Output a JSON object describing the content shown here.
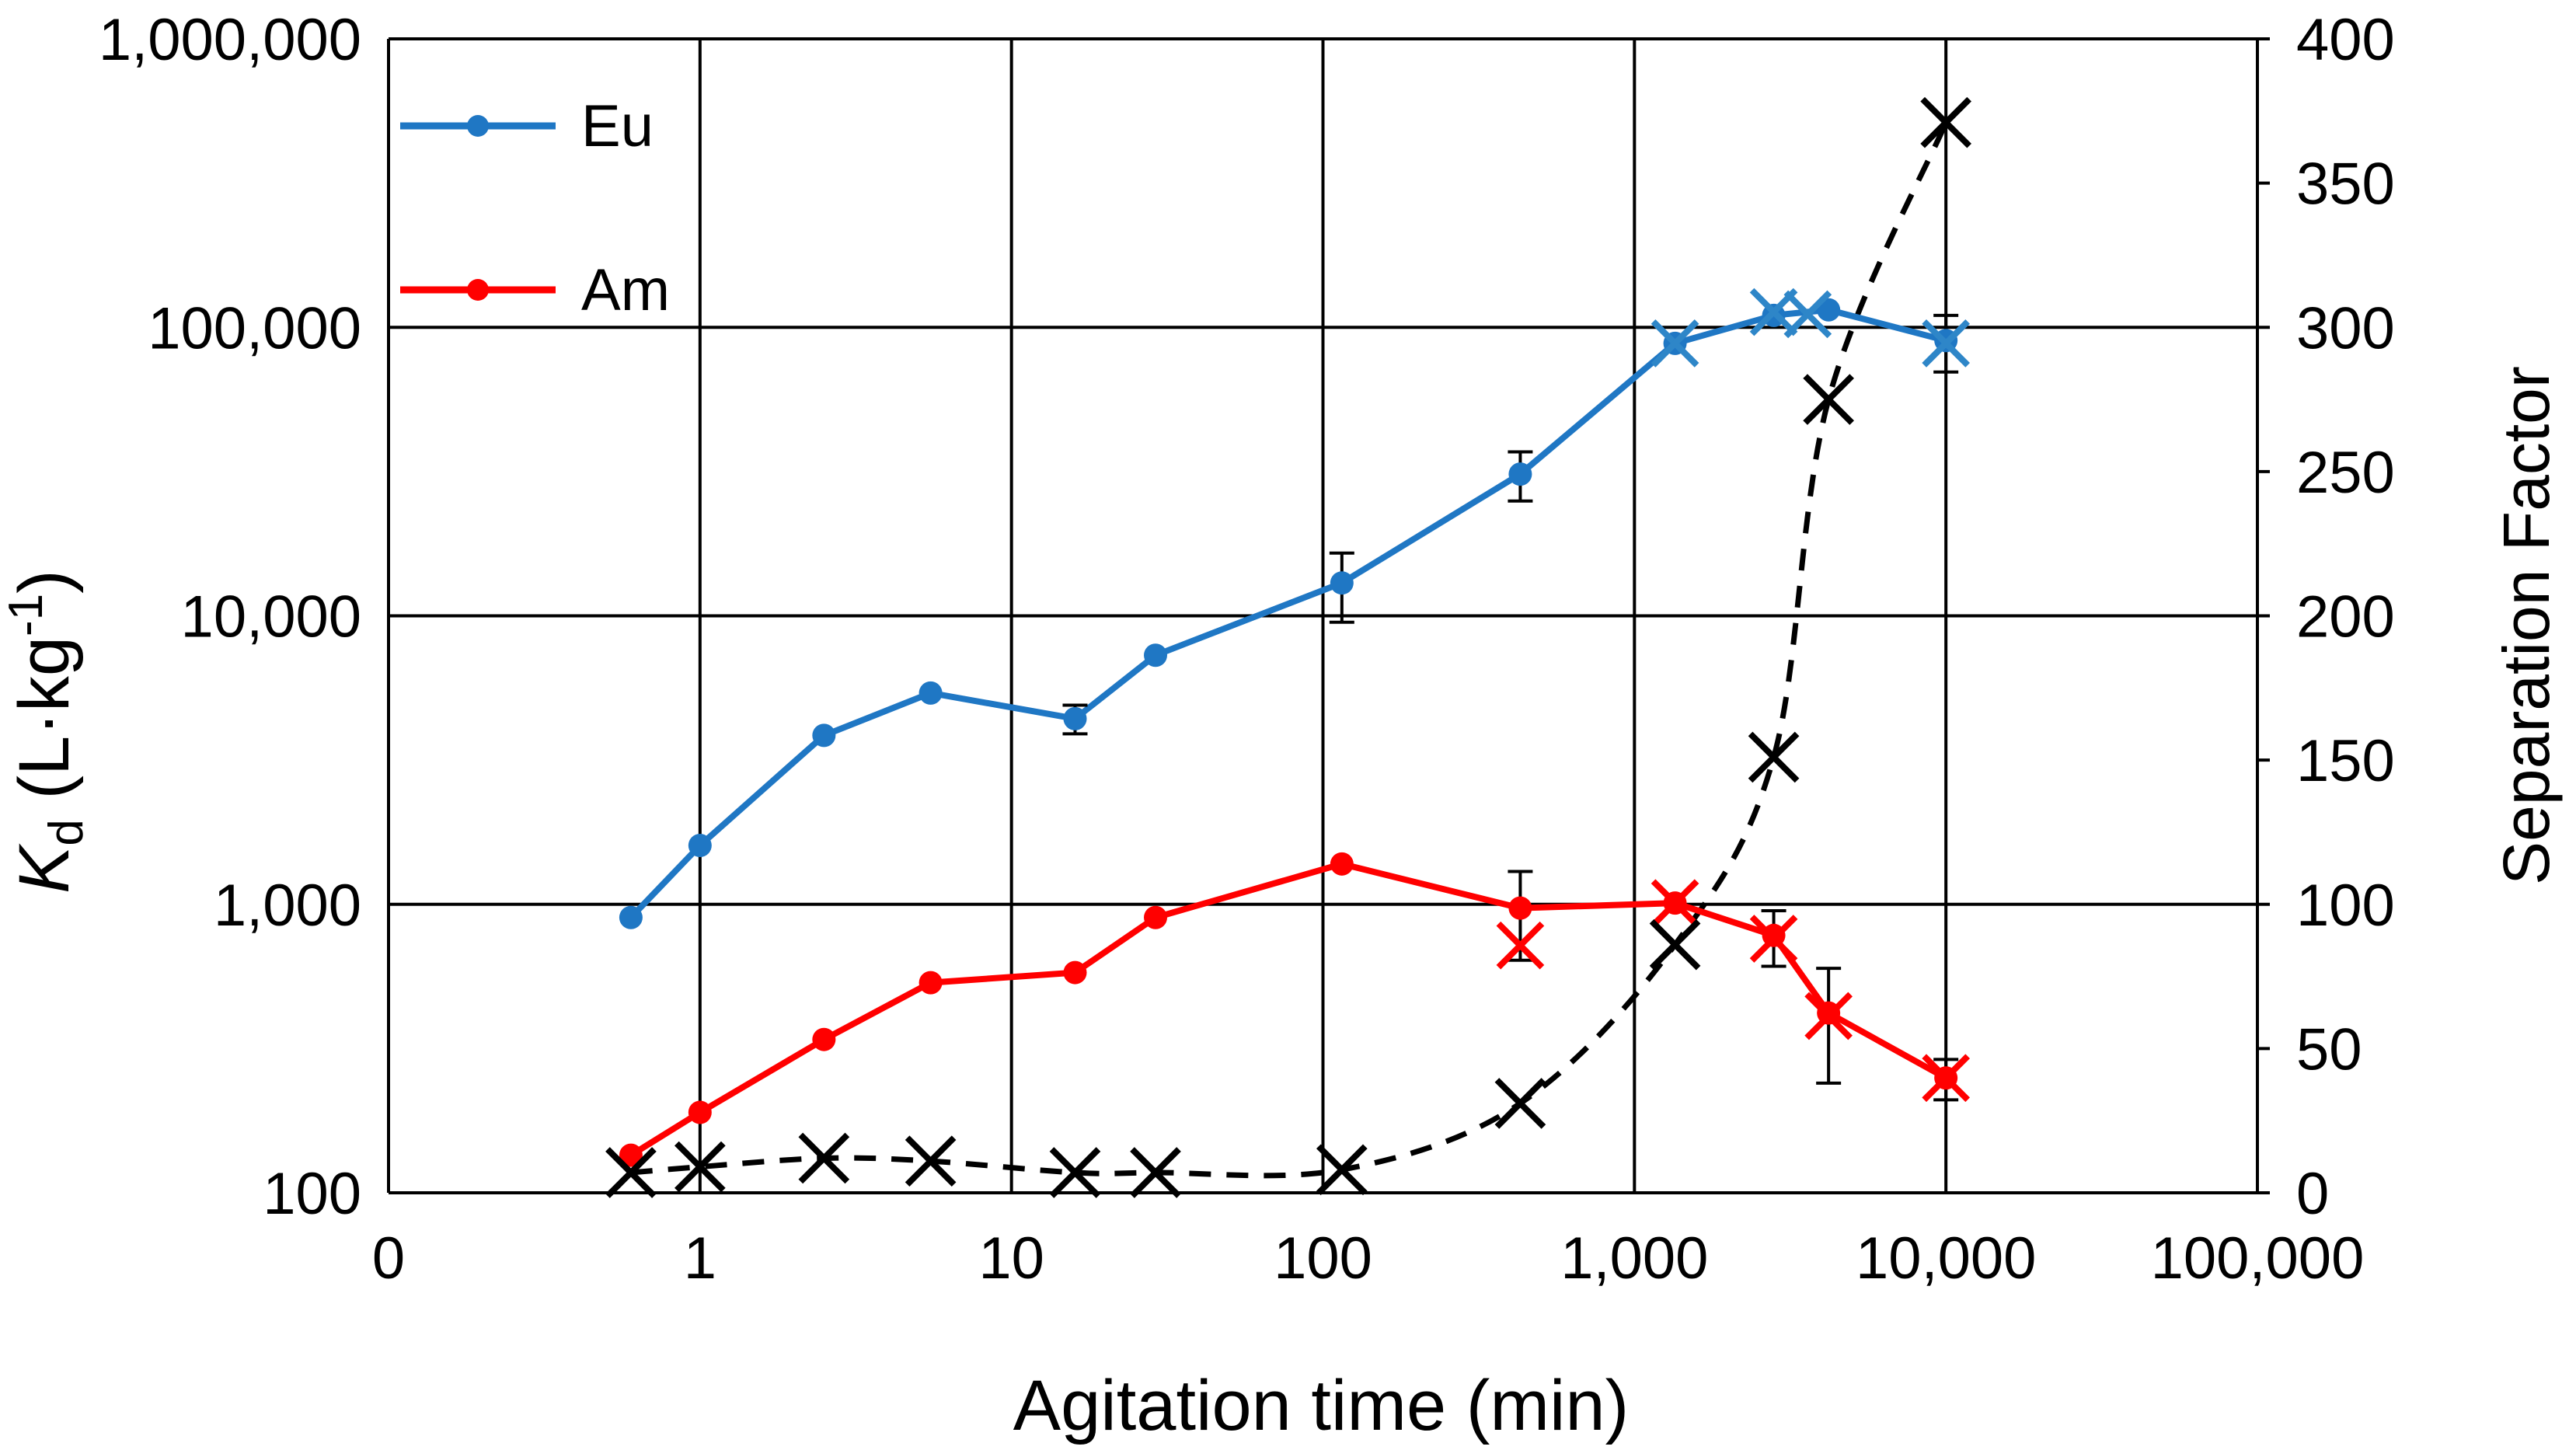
{
  "chart_data": {
    "type": "line",
    "title": "",
    "xlabel": "Agitation time (min)",
    "ylabel_left_symbol": "K",
    "ylabel_left_subscript": "d",
    "ylabel_left_units_open": " (L·kg",
    "ylabel_left_units_sup": "-1",
    "ylabel_left_units_close": ")",
    "ylabel_right": "Separation Factor",
    "x_scale": "log",
    "xlim": [
      0.1,
      100000
    ],
    "x_ticks": [
      {
        "value": 0.1,
        "label": "0"
      },
      {
        "value": 1,
        "label": "1"
      },
      {
        "value": 10,
        "label": "10"
      },
      {
        "value": 100,
        "label": "100"
      },
      {
        "value": 1000,
        "label": "1,000"
      },
      {
        "value": 10000,
        "label": "10,000"
      },
      {
        "value": 100000,
        "label": "100,000"
      }
    ],
    "y_left_scale": "log",
    "y_left_lim": [
      100,
      1000000
    ],
    "y_left_ticks": [
      {
        "value": 100,
        "label": "100"
      },
      {
        "value": 1000,
        "label": "1,000"
      },
      {
        "value": 10000,
        "label": "10,000"
      },
      {
        "value": 100000,
        "label": "100,000"
      },
      {
        "value": 1000000,
        "label": "1,000,000"
      }
    ],
    "y_right_lim": [
      0,
      400
    ],
    "y_right_ticks": [
      {
        "value": 0,
        "label": "0"
      },
      {
        "value": 50,
        "label": "50"
      },
      {
        "value": 100,
        "label": "100"
      },
      {
        "value": 150,
        "label": "150"
      },
      {
        "value": 200,
        "label": "200"
      },
      {
        "value": 250,
        "label": "250"
      },
      {
        "value": 300,
        "label": "300"
      },
      {
        "value": 350,
        "label": "350"
      },
      {
        "value": 400,
        "label": "400"
      }
    ],
    "grid": true,
    "legend_position": "top-left",
    "series": [
      {
        "name": "Eu",
        "axis": "left",
        "color": "#1f77c4",
        "marker": "circle",
        "x": [
          0.6,
          1,
          2.5,
          5.5,
          16,
          29,
          115,
          430,
          1350,
          2800,
          4200,
          10000
        ],
        "y": [
          900,
          1600,
          3850,
          5400,
          4400,
          7300,
          13000,
          31000,
          88000,
          110000,
          115000,
          90000
        ],
        "error": [
          null,
          null,
          null,
          null,
          500,
          null,
          3500,
          6000,
          null,
          null,
          null,
          20000
        ]
      },
      {
        "name": "Am",
        "axis": "left",
        "color": "#ff0000",
        "marker": "circle",
        "x": [
          0.6,
          1,
          2.5,
          5.5,
          16,
          29,
          115,
          430,
          1350,
          2800,
          4200,
          10000
        ],
        "y": [
          135,
          190,
          340,
          535,
          580,
          900,
          1380,
          970,
          1010,
          780,
          420,
          250
        ],
        "error": [
          null,
          null,
          null,
          null,
          null,
          null,
          null,
          330,
          null,
          170,
          180,
          40
        ]
      },
      {
        "name": "Separation Factor",
        "axis": "right",
        "color": "#000000",
        "marker": "x",
        "style": "dashed",
        "x": [
          0.6,
          1,
          2.5,
          5.5,
          16,
          29,
          115,
          430,
          1350,
          2800,
          4200,
          10000
        ],
        "y": [
          7,
          9,
          12,
          11,
          7,
          7,
          8,
          31,
          86,
          151,
          275,
          371
        ]
      }
    ],
    "x_markers": [
      {
        "series_color": "#2e86c8",
        "x": [
          1350,
          2800,
          3600,
          10000
        ],
        "y": [
          88000,
          113000,
          111000,
          88000
        ]
      },
      {
        "series_color": "#ff0000",
        "x": [
          430,
          1350,
          2800,
          4200,
          10000
        ],
        "y": [
          720,
          1010,
          760,
          410,
          250
        ]
      }
    ]
  }
}
